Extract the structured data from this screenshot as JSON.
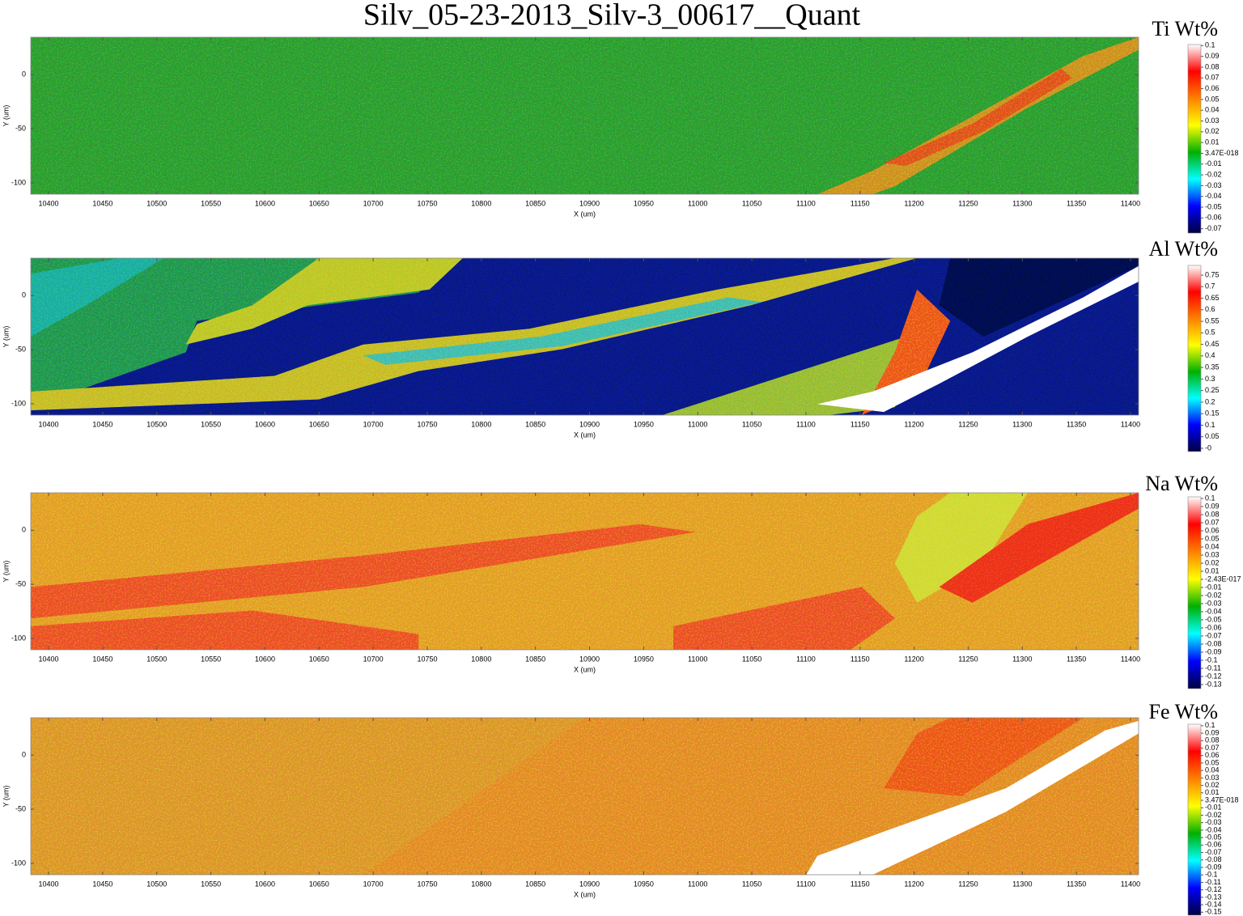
{
  "chart_data": [
    {
      "type": "heatmap",
      "title": "Silv_05-23-2013_Silv-3_00617__Quant",
      "colorbar_label": "Ti Wt%",
      "xlabel": "X (um)",
      "ylabel": "Y (um)",
      "xlim": [
        10383.5,
        11407.5
      ],
      "ylim": [
        -110.5,
        34.6
      ],
      "xticks": [
        10400,
        10450,
        10500,
        10550,
        10600,
        10650,
        10700,
        10750,
        10800,
        10850,
        10900,
        10950,
        11000,
        11050,
        11100,
        11150,
        11200,
        11250,
        11300,
        11350,
        11400
      ],
      "yticks": [
        -100,
        -50,
        0
      ],
      "clim": [
        -0.074,
        0.101
      ],
      "cticks": [
        0.1,
        0.09,
        0.08,
        0.07,
        0.06,
        0.05,
        0.04,
        0.03,
        0.02,
        0.01,
        {
          "value": 3.47e-18,
          "label": "3.47E-018"
        },
        -0.01,
        -0.02,
        -0.03,
        -0.04,
        -0.05,
        -0.06,
        -0.07
      ],
      "colormap": [
        "#000040",
        "#0000ff",
        "#00ffff",
        "#00b000",
        "#ffff00",
        "#ff8000",
        "#ff0000",
        "#ffffff"
      ]
    },
    {
      "type": "heatmap",
      "colorbar_label": "Al Wt%",
      "xlabel": "X (um)",
      "ylabel": "Y (um)",
      "xlim": [
        10383.5,
        11407.5
      ],
      "ylim": [
        -110.5,
        34.6
      ],
      "xticks": [
        10400,
        10450,
        10500,
        10550,
        10600,
        10650,
        10700,
        10750,
        10800,
        10850,
        10900,
        10950,
        11000,
        11050,
        11100,
        11150,
        11200,
        11250,
        11300,
        11350,
        11400
      ],
      "yticks": [
        -100,
        -50,
        0
      ],
      "clim": [
        -0.014,
        0.792
      ],
      "cticks": [
        0.75,
        0.7,
        0.65,
        0.6,
        0.55,
        0.5,
        0.45,
        0.4,
        0.35,
        0.3,
        0.25,
        0.2,
        0.15,
        0.1,
        0.05,
        {
          "value": 0,
          "label": "-0"
        }
      ],
      "colormap": [
        "#000040",
        "#0000ff",
        "#00ffff",
        "#00b000",
        "#ffff00",
        "#ff8000",
        "#ff0000",
        "#ffffff"
      ]
    },
    {
      "type": "heatmap",
      "colorbar_label": "Na Wt%",
      "xlabel": "X (um)",
      "ylabel": "Y (um)",
      "xlim": [
        10383.5,
        11407.5
      ],
      "ylim": [
        -110.5,
        34.6
      ],
      "xticks": [
        10400,
        10450,
        10500,
        10550,
        10600,
        10650,
        10700,
        10750,
        10800,
        10850,
        10900,
        10950,
        11000,
        11050,
        11100,
        11150,
        11200,
        11250,
        11300,
        11350,
        11400
      ],
      "yticks": [
        -100,
        -50,
        0
      ],
      "clim": [
        -0.135,
        0.102
      ],
      "cticks": [
        0.1,
        0.09,
        0.08,
        0.07,
        0.06,
        0.05,
        0.04,
        0.03,
        0.02,
        0.01,
        {
          "value": -2.43e-17,
          "label": "-2.43E-017"
        },
        -0.01,
        -0.02,
        -0.03,
        -0.04,
        -0.05,
        -0.06,
        -0.07,
        -0.08,
        -0.09,
        -0.1,
        -0.11,
        -0.12,
        -0.13
      ],
      "colormap": [
        "#000040",
        "#0000ff",
        "#00ffff",
        "#00b000",
        "#ffff00",
        "#ff8000",
        "#ff0000",
        "#ffffff"
      ]
    },
    {
      "type": "heatmap",
      "colorbar_label": "Fe Wt%",
      "xlabel": "X (um)",
      "ylabel": "Y (um)",
      "xlim": [
        10383.5,
        11407.5
      ],
      "ylim": [
        -110.5,
        34.6
      ],
      "xticks": [
        10400,
        10450,
        10500,
        10550,
        10600,
        10650,
        10700,
        10750,
        10800,
        10850,
        10900,
        10950,
        11000,
        11050,
        11100,
        11150,
        11200,
        11250,
        11300,
        11350,
        11400
      ],
      "yticks": [
        -100,
        -50,
        0
      ],
      "clim": [
        -0.154,
        0.102
      ],
      "cticks": [
        0.1,
        0.09,
        0.08,
        0.07,
        0.06,
        0.05,
        0.04,
        0.03,
        0.02,
        0.01,
        {
          "value": 3.47e-18,
          "label": "3.47E-018"
        },
        -0.01,
        -0.02,
        -0.03,
        -0.04,
        -0.05,
        -0.06,
        -0.07,
        -0.08,
        -0.09,
        -0.1,
        -0.11,
        -0.12,
        -0.13,
        -0.14,
        -0.15
      ],
      "colormap": [
        "#000040",
        "#0000ff",
        "#00ffff",
        "#00b000",
        "#ffff00",
        "#ff8000",
        "#ff0000",
        "#ffffff"
      ]
    }
  ]
}
